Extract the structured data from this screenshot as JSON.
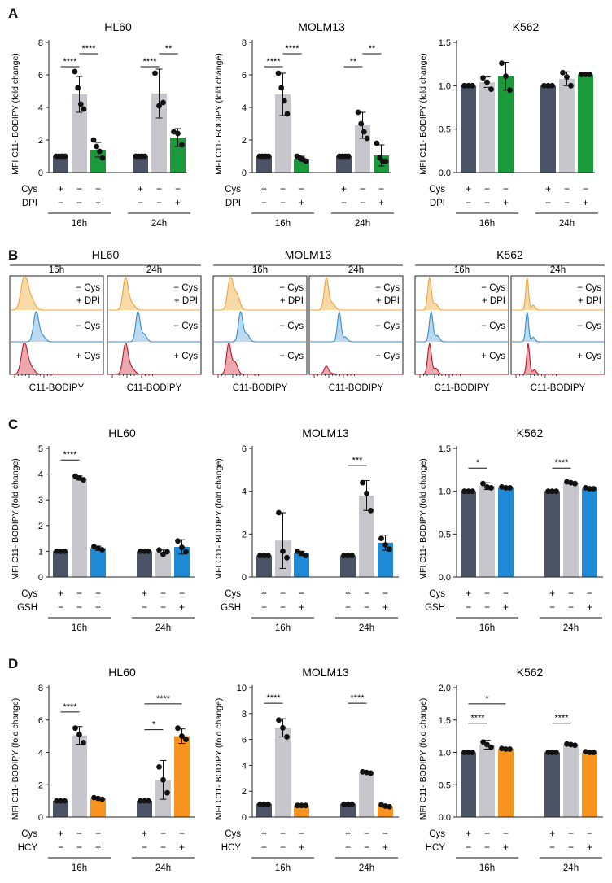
{
  "panel_labels": [
    "A",
    "B",
    "C",
    "D"
  ],
  "colors": {
    "cys": "#4b5466",
    "neg": "#c6c6cc",
    "dpi": "#1a9a3a",
    "gsh": "#1f8ad6",
    "hcy": "#f7931e",
    "hist_dpi": "#f0a43a",
    "hist_dpi_fill": "#f8d9a8",
    "hist_neg": "#2f8fd6",
    "hist_neg_fill": "#bcd9ef",
    "hist_cys": "#c0142a",
    "hist_cys_fill": "#eba8ad"
  },
  "histograms": {
    "x_label": "C11-BODIPY",
    "time_labels": [
      "16h",
      "24h"
    ],
    "conditions": [
      "− Cys\n+ DPI",
      "− Cys",
      "+ Cys"
    ],
    "condition_lines": [
      "− Cys",
      "+ DPI",
      "− Cys",
      "+ Cys"
    ],
    "cells": [
      "HL60",
      "MOLM13",
      "K562"
    ]
  },
  "chart_data": [
    {
      "id": "A-HL60",
      "type": "bar",
      "title": "HL60",
      "ylabel": "MFI C11- BODIPY (fold change)",
      "ylim": [
        0,
        8
      ],
      "yticks": [
        0,
        2,
        4,
        6,
        8
      ],
      "row_labels": [
        "Cys",
        "DPI"
      ],
      "row_signs": [
        [
          "+",
          "−",
          "−"
        ],
        [
          "−",
          "−",
          "+"
        ]
      ],
      "groups": [
        "16h",
        "24h"
      ],
      "treat": "dpi",
      "values": [
        [
          1,
          4.8,
          1.4
        ],
        [
          1,
          4.85,
          2.15
        ]
      ],
      "errors": [
        [
          0.02,
          1.1,
          0.45
        ],
        [
          0.02,
          1.5,
          0.55
        ]
      ],
      "points": [
        [
          [
            1,
            1,
            1,
            1
          ],
          [
            6.2,
            5.2,
            4.2,
            3.9
          ],
          [
            2.0,
            1.6,
            1.3,
            0.9
          ]
        ],
        [
          [
            1,
            1,
            1,
            1
          ],
          [
            6.1,
            4.1,
            4.3
          ],
          [
            2.5,
            2.4,
            1.7
          ]
        ]
      ],
      "sig": [
        {
          "g": 0,
          "a": 0,
          "b": 1,
          "t": "****",
          "y": 6.5
        },
        {
          "g": 0,
          "a": 1,
          "b": 2,
          "t": "****",
          "y": 7.3
        },
        {
          "g": 1,
          "a": 0,
          "b": 1,
          "t": "****",
          "y": 6.5
        },
        {
          "g": 1,
          "a": 1,
          "b": 2,
          "t": "**",
          "y": 7.3
        }
      ]
    },
    {
      "id": "A-MOLM13",
      "type": "bar",
      "title": "MOLM13",
      "ylabel": "MFI C11- BODIPY (fold change)",
      "ylim": [
        0,
        8
      ],
      "yticks": [
        0,
        2,
        4,
        6,
        8
      ],
      "row_labels": [
        "Cys",
        "DPI"
      ],
      "row_signs": [
        [
          "+",
          "−",
          "−"
        ],
        [
          "−",
          "−",
          "+"
        ]
      ],
      "groups": [
        "16h",
        "24h"
      ],
      "treat": "dpi",
      "values": [
        [
          1,
          4.8,
          0.85
        ],
        [
          1,
          2.9,
          1.05
        ]
      ],
      "errors": [
        [
          0.02,
          1.3,
          0.15
        ],
        [
          0.02,
          0.8,
          0.65
        ]
      ],
      "points": [
        [
          [
            1,
            1,
            1,
            1
          ],
          [
            6.1,
            5.2,
            4.4,
            3.6
          ],
          [
            1.0,
            0.9,
            0.8,
            0.7
          ]
        ],
        [
          [
            1,
            1,
            1,
            1
          ],
          [
            3.7,
            3.0,
            2.5,
            2.1
          ],
          [
            1.8,
            0.9,
            0.7,
            0.7
          ]
        ]
      ],
      "sig": [
        {
          "g": 0,
          "a": 0,
          "b": 1,
          "t": "****",
          "y": 6.5
        },
        {
          "g": 0,
          "a": 1,
          "b": 2,
          "t": "****",
          "y": 7.3
        },
        {
          "g": 1,
          "a": 0,
          "b": 1,
          "t": "**",
          "y": 6.5
        },
        {
          "g": 1,
          "a": 1,
          "b": 2,
          "t": "**",
          "y": 7.3
        }
      ]
    },
    {
      "id": "A-K562",
      "type": "bar",
      "title": "K562",
      "ylabel": "MFI C11- BODIPY (fold change)",
      "ylim": [
        0,
        1.5
      ],
      "yticks": [
        0,
        0.5,
        1.0,
        1.5
      ],
      "row_labels": [
        "Cys",
        "DPI"
      ],
      "row_signs": [
        [
          "+",
          "−",
          "−"
        ],
        [
          "−",
          "−",
          "+"
        ]
      ],
      "groups": [
        "16h",
        "24h"
      ],
      "treat": "dpi",
      "values": [
        [
          1,
          1.04,
          1.11
        ],
        [
          1,
          1.08,
          1.13
        ]
      ],
      "errors": [
        [
          0.01,
          0.06,
          0.16
        ],
        [
          0.01,
          0.08,
          0.01
        ]
      ],
      "points": [
        [
          [
            1,
            1,
            1
          ],
          [
            1.09,
            1.04,
            0.96
          ],
          [
            1.26,
            1.11,
            0.95
          ]
        ],
        [
          [
            1,
            1,
            1
          ],
          [
            1.15,
            1.1,
            1.0
          ],
          [
            1.13,
            1.13,
            1.13
          ]
        ]
      ],
      "sig": []
    },
    {
      "id": "C-HL60",
      "type": "bar",
      "title": "HL60",
      "ylabel": "MFI C11- BODIPY (fold change)",
      "ylim": [
        0,
        5
      ],
      "yticks": [
        0,
        1,
        2,
        3,
        4,
        5
      ],
      "row_labels": [
        "Cys",
        "GSH"
      ],
      "row_signs": [
        [
          "+",
          "−",
          "−"
        ],
        [
          "−",
          "−",
          "+"
        ]
      ],
      "groups": [
        "16h",
        "24h"
      ],
      "treat": "gsh",
      "values": [
        [
          1,
          3.85,
          1.12
        ],
        [
          1,
          0.97,
          1.17
        ]
      ],
      "errors": [
        [
          0.01,
          0.08,
          0.08
        ],
        [
          0.01,
          0.08,
          0.28
        ]
      ],
      "points": [
        [
          [
            1,
            1,
            1
          ],
          [
            3.92,
            3.85,
            3.78
          ],
          [
            1.18,
            1.12,
            1.06
          ]
        ],
        [
          [
            1,
            1,
            1
          ],
          [
            1.05,
            0.88,
            0.98
          ],
          [
            1.4,
            1.15,
            0.98
          ]
        ]
      ],
      "sig": [
        {
          "g": 0,
          "a": 0,
          "b": 1,
          "t": "****",
          "y": 4.55
        }
      ]
    },
    {
      "id": "C-MOLM13",
      "type": "bar",
      "title": "MOLM13",
      "ylabel": "MFI C11- BODIPY (fold change)",
      "ylim": [
        0,
        6
      ],
      "yticks": [
        0,
        2,
        4,
        6
      ],
      "row_labels": [
        "Cys",
        "GSH"
      ],
      "row_signs": [
        [
          "+",
          "−",
          "−"
        ],
        [
          "−",
          "−",
          "+"
        ]
      ],
      "groups": [
        "16h",
        "24h"
      ],
      "treat": "gsh",
      "values": [
        [
          1,
          1.7,
          1.1
        ],
        [
          1,
          3.8,
          1.6
        ]
      ],
      "errors": [
        [
          0.01,
          1.3,
          0.1
        ],
        [
          0.01,
          0.7,
          0.35
        ]
      ],
      "points": [
        [
          [
            1,
            1,
            1
          ],
          [
            3.0,
            1.2,
            0.9
          ],
          [
            1.2,
            1.1,
            1.0
          ]
        ],
        [
          [
            1,
            1,
            1
          ],
          [
            4.4,
            3.9,
            3.1
          ],
          [
            1.8,
            1.5,
            1.3
          ]
        ]
      ],
      "sig": [
        {
          "g": 1,
          "a": 0,
          "b": 1,
          "t": "***",
          "y": 5.2
        }
      ]
    },
    {
      "id": "C-K562",
      "type": "bar",
      "title": "K562",
      "ylabel": "MFI C11- BODIPY (fold change)",
      "ylim": [
        0,
        1.5
      ],
      "yticks": [
        0,
        0.5,
        1.0,
        1.5
      ],
      "row_labels": [
        "Cys",
        "GSH"
      ],
      "row_signs": [
        [
          "+",
          "−",
          "−"
        ],
        [
          "−",
          "−",
          "+"
        ]
      ],
      "groups": [
        "16h",
        "24h"
      ],
      "treat": "gsh",
      "values": [
        [
          1,
          1.06,
          1.04
        ],
        [
          1,
          1.1,
          1.03
        ]
      ],
      "errors": [
        [
          0.01,
          0.04,
          0.01
        ],
        [
          0.01,
          0.01,
          0.01
        ]
      ],
      "points": [
        [
          [
            1,
            1,
            1
          ],
          [
            1.09,
            1.05,
            1.04
          ],
          [
            1.05,
            1.04,
            1.04
          ]
        ],
        [
          [
            1,
            1,
            1
          ],
          [
            1.11,
            1.1,
            1.09
          ],
          [
            1.04,
            1.03,
            1.03
          ]
        ]
      ],
      "sig": [
        {
          "g": 0,
          "a": 0,
          "b": 1,
          "t": "*",
          "y": 1.27
        },
        {
          "g": 1,
          "a": 0,
          "b": 1,
          "t": "****",
          "y": 1.27
        }
      ]
    },
    {
      "id": "D-HL60",
      "type": "bar",
      "title": "HL60",
      "ylabel": "MFI C11- BODIPY (fold change)",
      "ylim": [
        0,
        8
      ],
      "yticks": [
        0,
        2,
        4,
        6,
        8
      ],
      "row_labels": [
        "Cys",
        "HCY"
      ],
      "row_signs": [
        [
          "+",
          "−",
          "−"
        ],
        [
          "−",
          "−",
          "+"
        ]
      ],
      "groups": [
        "16h",
        "24h"
      ],
      "treat": "hcy",
      "values": [
        [
          1,
          5.05,
          1.15
        ],
        [
          1,
          2.3,
          5.0
        ]
      ],
      "errors": [
        [
          0.01,
          0.55,
          0.05
        ],
        [
          0.01,
          1.2,
          0.45
        ]
      ],
      "points": [
        [
          [
            1,
            1,
            1
          ],
          [
            5.5,
            5.1,
            4.6
          ],
          [
            1.2,
            1.15,
            1.1
          ]
        ],
        [
          [
            1,
            1,
            1
          ],
          [
            3.1,
            2.3,
            1.5
          ],
          [
            5.5,
            5.0,
            4.8
          ]
        ]
      ],
      "sig": [
        {
          "g": 0,
          "a": 0,
          "b": 1,
          "t": "****",
          "y": 6.5
        },
        {
          "g": 1,
          "a": 0,
          "b": 1,
          "t": "*",
          "y": 5.4
        },
        {
          "g": 1,
          "a": 0,
          "b": 2,
          "t": "****",
          "y": 7.0
        }
      ]
    },
    {
      "id": "D-MOLM13",
      "type": "bar",
      "title": "MOLM13",
      "ylabel": "MFI C11- BODIPY (fold change)",
      "ylim": [
        0,
        10
      ],
      "yticks": [
        0,
        2,
        4,
        6,
        8,
        10
      ],
      "row_labels": [
        "Cys",
        "HCY"
      ],
      "row_signs": [
        [
          "+",
          "−",
          "−"
        ],
        [
          "−",
          "−",
          "+"
        ]
      ],
      "groups": [
        "16h",
        "24h"
      ],
      "treat": "hcy",
      "values": [
        [
          1,
          6.9,
          0.9
        ],
        [
          1,
          3.45,
          0.85
        ]
      ],
      "errors": [
        [
          0.01,
          0.7,
          0.05
        ],
        [
          0.01,
          0.08,
          0.08
        ]
      ],
      "points": [
        [
          [
            1,
            1,
            1
          ],
          [
            7.5,
            6.9,
            6.2
          ],
          [
            0.9,
            0.9,
            0.9
          ]
        ],
        [
          [
            1,
            1,
            1
          ],
          [
            3.5,
            3.45,
            3.4
          ],
          [
            0.95,
            0.85,
            0.8
          ]
        ]
      ],
      "sig": [
        {
          "g": 0,
          "a": 0,
          "b": 1,
          "t": "****",
          "y": 8.8
        },
        {
          "g": 1,
          "a": 0,
          "b": 1,
          "t": "****",
          "y": 8.8
        }
      ]
    },
    {
      "id": "D-K562",
      "type": "bar",
      "title": "K562",
      "ylabel": "MFI C11- BODIPY (fold change)",
      "ylim": [
        0,
        2.0
      ],
      "yticks": [
        0,
        0.5,
        1.0,
        1.5,
        2.0
      ],
      "row_labels": [
        "Cys",
        "HCY"
      ],
      "row_signs": [
        [
          "+",
          "−",
          "−"
        ],
        [
          "−",
          "−",
          "+"
        ]
      ],
      "groups": [
        "16h",
        "24h"
      ],
      "treat": "hcy",
      "values": [
        [
          1,
          1.12,
          1.05
        ],
        [
          1,
          1.12,
          1.0
        ]
      ],
      "errors": [
        [
          0.01,
          0.07,
          0.01
        ],
        [
          0.01,
          0.01,
          0.01
        ]
      ],
      "points": [
        [
          [
            1,
            1,
            1
          ],
          [
            1.16,
            1.12,
            1.08
          ],
          [
            1.06,
            1.05,
            1.05
          ]
        ],
        [
          [
            1,
            1,
            1
          ],
          [
            1.13,
            1.12,
            1.11
          ],
          [
            1.01,
            1.0,
            1.0
          ]
        ]
      ],
      "sig": [
        {
          "g": 0,
          "a": 0,
          "b": 1,
          "t": "****",
          "y": 1.45
        },
        {
          "g": 0,
          "a": 0,
          "b": 2,
          "t": "*",
          "y": 1.75
        },
        {
          "g": 1,
          "a": 0,
          "b": 1,
          "t": "****",
          "y": 1.45
        }
      ]
    }
  ]
}
